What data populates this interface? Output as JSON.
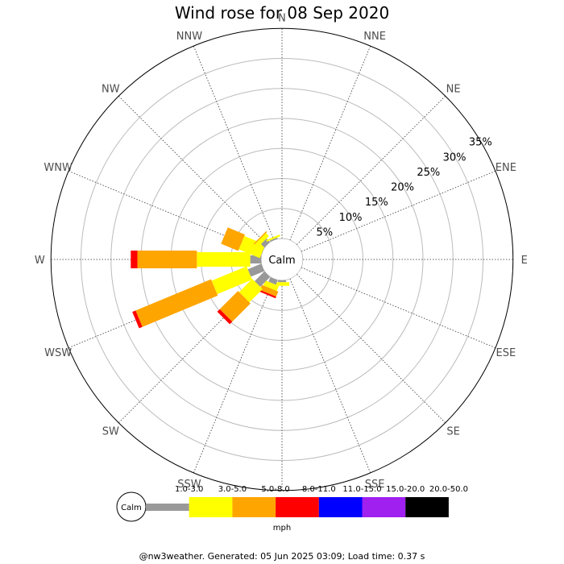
{
  "title": "Wind rose for 08 Sep 2020",
  "footer": "@nw3weather. Generated: 05 Jun 2025 03:09; Load time: 0.37 s",
  "chart_data": {
    "type": "wind-rose",
    "title": "Wind rose for 08 Sep 2020",
    "center_label": "Calm",
    "rings_percent": [
      5,
      10,
      15,
      20,
      25,
      30,
      35
    ],
    "ring_labels": [
      "5%",
      "10%",
      "15%",
      "20%",
      "25%",
      "30%",
      "35%"
    ],
    "directions": [
      "N",
      "NNE",
      "NE",
      "ENE",
      "E",
      "ESE",
      "SE",
      "SSE",
      "S",
      "SSW",
      "SW",
      "WSW",
      "W",
      "WNW",
      "NW",
      "NNW"
    ],
    "speed_bins": [
      {
        "label": "1.0-3.0",
        "color": "#999999"
      },
      {
        "label": "3.0-5.0",
        "color": "#ffff00"
      },
      {
        "label": "5.0-8.0",
        "color": "#ffa500"
      },
      {
        "label": "8.0-11.0",
        "color": "#ff0000"
      },
      {
        "label": "11.0-15.0",
        "color": "#0000ff"
      },
      {
        "label": "15.0-20.0",
        "color": "#a020f0"
      },
      {
        "label": "20.0-50.0",
        "color": "#000000"
      }
    ],
    "unit": "mph",
    "frequencies_percent": {
      "N": [
        0,
        0,
        0,
        0,
        0,
        0,
        0
      ],
      "NNE": [
        0,
        0,
        0,
        0,
        0,
        0,
        0
      ],
      "NE": [
        0,
        0,
        0,
        0,
        0,
        0,
        0
      ],
      "ENE": [
        0,
        0,
        0,
        0,
        0,
        0,
        0
      ],
      "E": [
        0,
        0,
        0,
        0,
        0,
        0,
        0
      ],
      "ESE": [
        0,
        0,
        0,
        0,
        0,
        0,
        0
      ],
      "SE": [
        0,
        0,
        0,
        0,
        0,
        0,
        0
      ],
      "SSE": [
        0,
        0,
        0,
        0,
        0,
        0,
        0
      ],
      "S": [
        0.3,
        0.6,
        0,
        0,
        0,
        0,
        0
      ],
      "SSW": [
        0.8,
        0.9,
        0.9,
        0.3,
        0,
        0,
        0
      ],
      "SW": [
        2.3,
        3.1,
        4.3,
        0.6,
        0,
        0,
        0
      ],
      "WSW": [
        2.4,
        6.3,
        13.6,
        0.6,
        0,
        0,
        0
      ],
      "W": [
        1.8,
        8.9,
        9.9,
        1.1,
        0,
        0,
        0
      ],
      "WNW": [
        0,
        3.8,
        3.1,
        0,
        0,
        0,
        0
      ],
      "NW": [
        0.8,
        0.7,
        0.2,
        0,
        0,
        0,
        0
      ],
      "NNW": [
        0.2,
        0.3,
        0,
        0,
        0,
        0,
        0
      ]
    }
  }
}
